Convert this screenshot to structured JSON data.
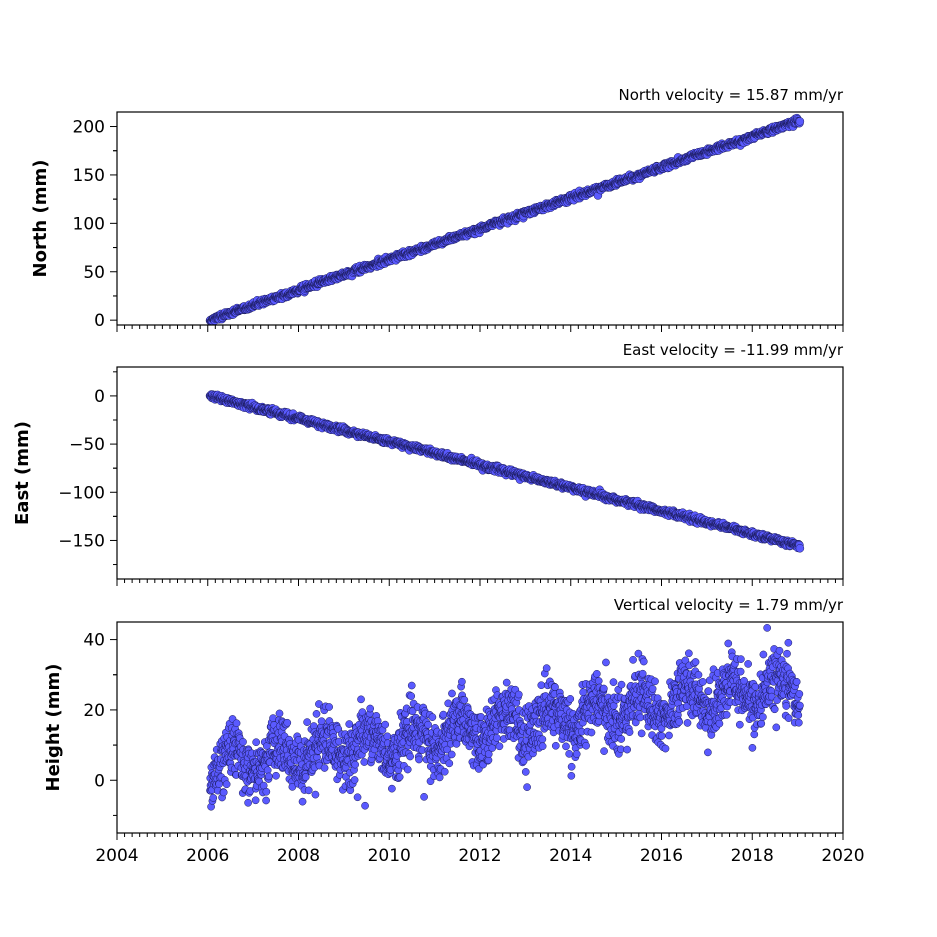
{
  "chart_data": [
    {
      "type": "scatter",
      "title": "North velocity = 15.87 mm/yr",
      "ylabel": "North (mm)",
      "xlim": [
        2004,
        2020
      ],
      "ylim": [
        -5,
        215
      ],
      "yticks": [
        0,
        50,
        100,
        150,
        200
      ],
      "ytick_labels": [
        "0",
        "50",
        "100",
        "150",
        "200"
      ],
      "x_range": [
        2006.05,
        2019.05
      ],
      "velocity_mm_per_yr": 15.87,
      "offset_mm": 0,
      "noise_mm": 1.5,
      "seasonal_mm": 0,
      "marker_color": "#5a5aff",
      "edge_color": "#1a1a5a",
      "n_points": 1400
    },
    {
      "type": "scatter",
      "title": "East velocity = -11.99 mm/yr",
      "ylabel": "East (mm)",
      "xlim": [
        2004,
        2020
      ],
      "ylim": [
        -190,
        30
      ],
      "yticks": [
        0,
        -50,
        -100,
        -150
      ],
      "ytick_labels": [
        "0",
        "−50",
        "−100",
        "−150"
      ],
      "x_range": [
        2006.05,
        2019.05
      ],
      "velocity_mm_per_yr": -11.99,
      "offset_mm": 0,
      "noise_mm": 1.5,
      "seasonal_mm": 0,
      "marker_color": "#5a5aff",
      "edge_color": "#1a1a5a",
      "n_points": 1400
    },
    {
      "type": "scatter",
      "title": "Vertical velocity = 1.79 mm/yr",
      "ylabel": "Height (mm)",
      "xlim": [
        2004,
        2020
      ],
      "ylim": [
        -15,
        45
      ],
      "yticks": [
        0,
        20,
        40
      ],
      "ytick_labels": [
        "0",
        "20",
        "40"
      ],
      "x_range": [
        2006.05,
        2019.05
      ],
      "velocity_mm_per_yr": 1.79,
      "offset_mm": 4,
      "noise_mm": 4.2,
      "seasonal_mm": 4,
      "marker_color": "#5a5aff",
      "edge_color": "#1a1a5a",
      "n_points": 2200
    }
  ],
  "x_axis": {
    "ticks": [
      2004,
      2006,
      2008,
      2010,
      2012,
      2014,
      2016,
      2018,
      2020
    ],
    "tick_labels": [
      "2004",
      "2006",
      "2008",
      "2010",
      "2012",
      "2014",
      "2016",
      "2018",
      "2020"
    ]
  }
}
